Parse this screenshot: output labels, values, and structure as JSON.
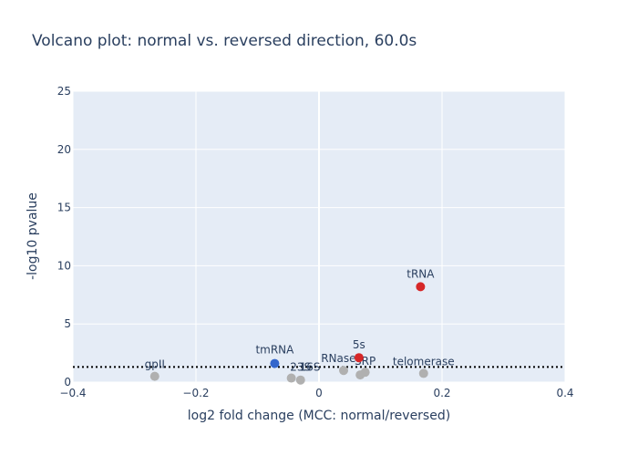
{
  "chart_data": {
    "type": "scatter",
    "title": "Volcano plot: normal vs. reversed direction, 60.0s",
    "xlabel": "log2 fold change (MCC: normal/reversed)",
    "ylabel": "-log10 pvalue",
    "xlim": [
      -0.4,
      0.4
    ],
    "ylim": [
      0,
      25
    ],
    "xticks": [
      -0.4,
      -0.2,
      0,
      0.2,
      0.4
    ],
    "xtick_labels": [
      "−0.4",
      "−0.2",
      "0",
      "0.2",
      "0.4"
    ],
    "yticks": [
      0,
      5,
      10,
      15,
      20,
      25
    ],
    "ytick_labels": [
      "0",
      "5",
      "10",
      "15",
      "20",
      "25"
    ],
    "grid": true,
    "threshold_line": {
      "y": 1.3,
      "style": "dotted"
    },
    "colors": {
      "plot_bg": "#e5ecf6",
      "grid": "#ffffff",
      "text": "#2a3f5f",
      "not_significant": "#b0b0b0",
      "up": "#d62728",
      "down": "#3366cc",
      "threshold": "#000000"
    },
    "points": [
      {
        "label": "gpII",
        "x": -0.267,
        "y": 0.5,
        "group": "not_significant"
      },
      {
        "label": "tmRNA",
        "x": -0.072,
        "y": 1.6,
        "group": "down"
      },
      {
        "label": "16S",
        "x": -0.045,
        "y": 0.35,
        "group": "not_significant"
      },
      {
        "label": "23S",
        "x": -0.03,
        "y": 0.18,
        "group": "not_significant"
      },
      {
        "label": "RNaseP",
        "x": 0.04,
        "y": 1.0,
        "group": "not_significant"
      },
      {
        "label": "SRP",
        "x": 0.075,
        "y": 0.85,
        "group": "not_significant"
      },
      {
        "label": "",
        "x": 0.067,
        "y": 0.62,
        "group": "not_significant"
      },
      {
        "label": "5s",
        "x": 0.065,
        "y": 2.1,
        "group": "up"
      },
      {
        "label": "tRNA",
        "x": 0.165,
        "y": 8.2,
        "group": "up"
      },
      {
        "label": "telomerase",
        "x": 0.17,
        "y": 0.75,
        "group": "not_significant"
      }
    ]
  }
}
